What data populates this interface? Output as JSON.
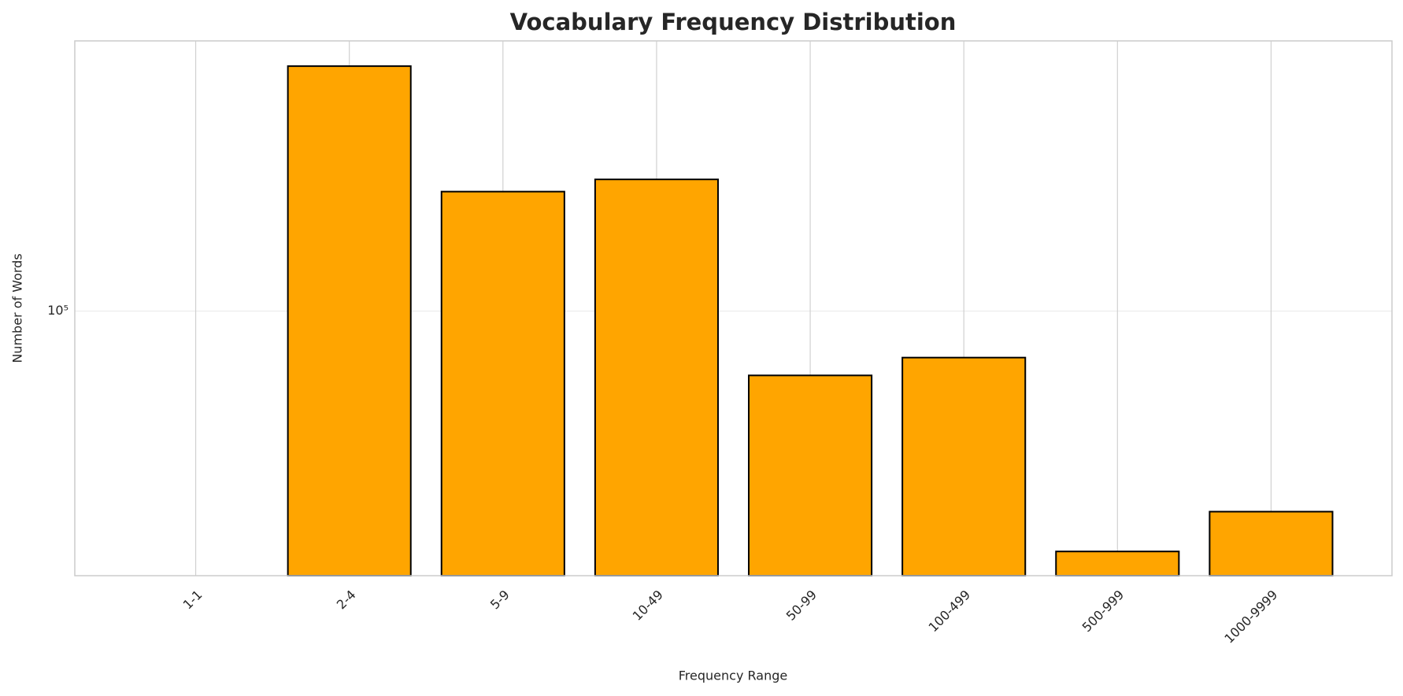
{
  "chart_data": {
    "type": "bar",
    "title": "Vocabulary Frequency Distribution",
    "xlabel": "Frequency Range",
    "ylabel": "Number of Words",
    "categories": [
      "1-1",
      "2-4",
      "5-9",
      "10-49",
      "50-99",
      "100-499",
      "500-999",
      "1000-9999"
    ],
    "values": [
      null,
      353000,
      185000,
      197000,
      71800,
      78700,
      29000,
      35600
    ],
    "color": "#ffa500",
    "edgecolor": "#000000",
    "ylim": [
      25600,
      402000
    ],
    "yscale": "log",
    "yticks": [
      {
        "value": 100000,
        "label": "10⁵"
      }
    ],
    "grid": true
  }
}
